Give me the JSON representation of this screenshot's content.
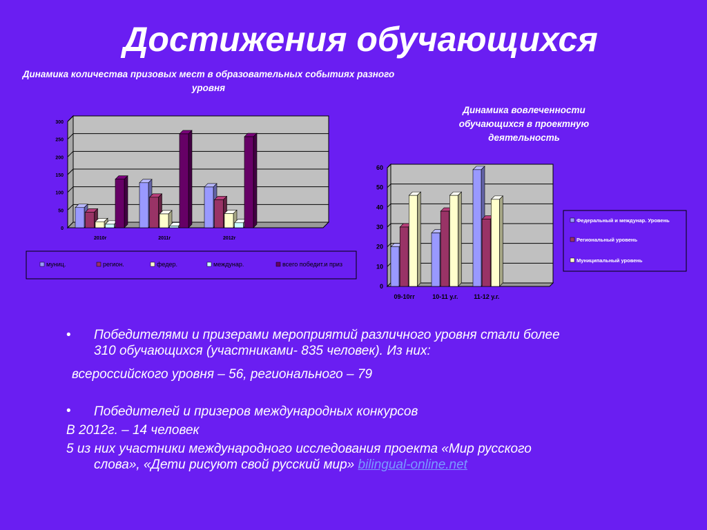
{
  "slide": {
    "title": "Достижения обучающихся",
    "chart1_title": "Динамика количества призовых мест в образовательных событиях разного уровня",
    "chart2_title": "Динамика вовлеченности обучающихся в проектную деятельность",
    "bullet_symbol": "•",
    "p1_line1": "Победителями и призерами мероприятий различного уровня  стали более",
    "p1_line2": "310 обучающихся (участниками- 835 человек). Из них:",
    "p2": "всероссийского уровня – 56, регионального – 79",
    "p3": "Победителей  и призеров международных конкурсов",
    "p4": "В 2012г. – 14 человек",
    "p5_line1": "5 из них участники международного исследования  проекта «Мир русского",
    "p5_line2_text": "слова», «Дети рисуют свой русский мир» ",
    "p5_link": "bilingual-online.net"
  },
  "chart_data": [
    {
      "type": "bar",
      "categories": [
        "2010г",
        "2011г",
        "2012г"
      ],
      "series": [
        {
          "name": "муниц.",
          "values": [
            57,
            127,
            115
          ],
          "color": "#9999ff"
        },
        {
          "name": "регион.",
          "values": [
            44,
            86,
            79
          ],
          "color": "#993366"
        },
        {
          "name": "федер.",
          "values": [
            17,
            39,
            40
          ],
          "color": "#ffffcc"
        },
        {
          "name": "междунар.",
          "values": [
            10,
            5,
            14
          ],
          "color": "#ccffff"
        },
        {
          "name": "всего победит.и приз",
          "values": [
            137,
            265,
            257
          ],
          "color": "#660066"
        }
      ],
      "y_ticks": [
        "0",
        "50",
        "100",
        "150",
        "200",
        "250",
        "300"
      ],
      "ylim": [
        0,
        300
      ],
      "legend": "bottom",
      "grid": true
    },
    {
      "type": "bar",
      "categories": [
        "09-10гг",
        "10-11 у.г.",
        "11-12 у.г."
      ],
      "series": [
        {
          "name": "Федеральный и междунар. Уровень",
          "values": [
            20,
            27,
            59
          ],
          "color": "#9999ff"
        },
        {
          "name": "Региональный уровень",
          "values": [
            30,
            38,
            34
          ],
          "color": "#993366"
        },
        {
          "name": "Муниципальный уровень",
          "values": [
            46,
            46,
            44
          ],
          "color": "#ffffcc"
        }
      ],
      "y_ticks": [
        "0",
        "10",
        "20",
        "30",
        "40",
        "50",
        "60"
      ],
      "ylim": [
        0,
        60
      ],
      "legend": "right",
      "grid": true
    }
  ]
}
